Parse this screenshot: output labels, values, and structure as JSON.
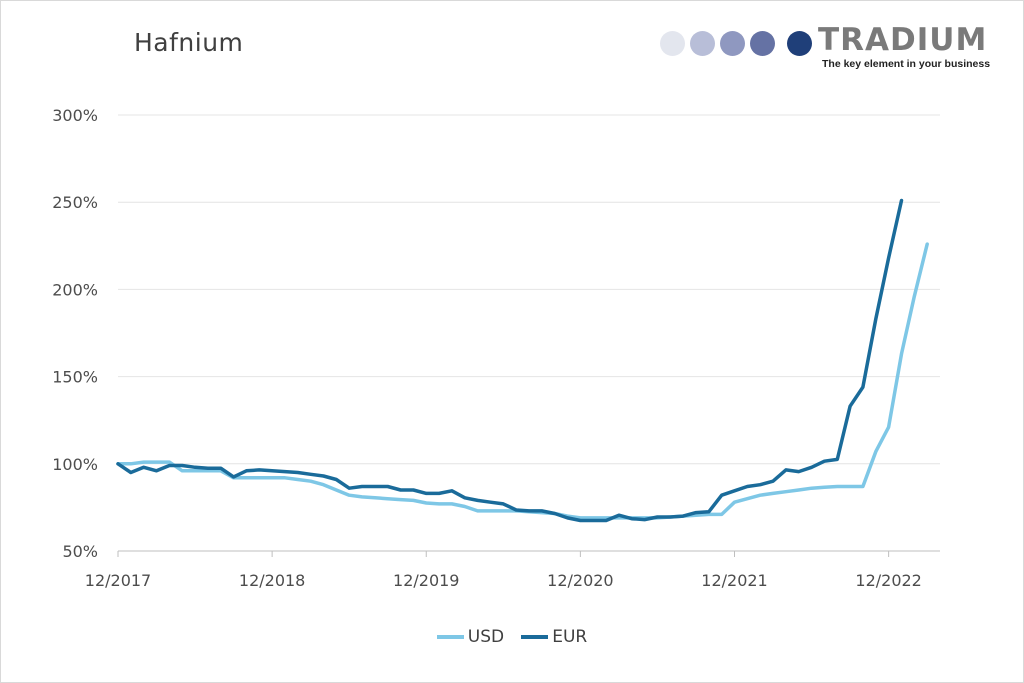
{
  "title": "Hafnium",
  "logo": {
    "brand": "TRADIUM",
    "tagline": "The key element in your business",
    "dot_colors": [
      "#e3e6ee",
      "#b8bed8",
      "#8f98c0",
      "#6572a4",
      "#1f3f79"
    ]
  },
  "chart_data": {
    "type": "line",
    "title": "Hafnium",
    "xlabel": "",
    "ylabel": "",
    "ylim": [
      50,
      300
    ],
    "y_ticks": [
      "50%",
      "100%",
      "150%",
      "200%",
      "250%",
      "300%"
    ],
    "y_tick_values": [
      50,
      100,
      150,
      200,
      250,
      300
    ],
    "x_ticks": [
      "12/2017",
      "12/2018",
      "12/2019",
      "12/2020",
      "12/2021",
      "12/2022"
    ],
    "x_unit": "months since 12/2017",
    "grid": "horizontal",
    "legend_position": "bottom-center",
    "series": [
      {
        "name": "USD",
        "color": "#7ec7e6",
        "points": [
          [
            0,
            100
          ],
          [
            1,
            100
          ],
          [
            2,
            101
          ],
          [
            3,
            101
          ],
          [
            4,
            101
          ],
          [
            5,
            96
          ],
          [
            6,
            96
          ],
          [
            7,
            96
          ],
          [
            8,
            96
          ],
          [
            9,
            92
          ],
          [
            10,
            92
          ],
          [
            11,
            92
          ],
          [
            12,
            92
          ],
          [
            13,
            92
          ],
          [
            14,
            91
          ],
          [
            15,
            90
          ],
          [
            16,
            88
          ],
          [
            17,
            85
          ],
          [
            18,
            82
          ],
          [
            19,
            81
          ],
          [
            20,
            80.5
          ],
          [
            21,
            80
          ],
          [
            22,
            79.5
          ],
          [
            23,
            79
          ],
          [
            24,
            77.5
          ],
          [
            25,
            77
          ],
          [
            26,
            77
          ],
          [
            27,
            75.5
          ],
          [
            28,
            73
          ],
          [
            29,
            73
          ],
          [
            30,
            73
          ],
          [
            31,
            73
          ],
          [
            32,
            72.5
          ],
          [
            33,
            72
          ],
          [
            34,
            71.5
          ],
          [
            35,
            70
          ],
          [
            36,
            69
          ],
          [
            37,
            69
          ],
          [
            38,
            69
          ],
          [
            39,
            69
          ],
          [
            40,
            69
          ],
          [
            41,
            69
          ],
          [
            42,
            69
          ],
          [
            43,
            69.5
          ],
          [
            44,
            70
          ],
          [
            45,
            70.5
          ],
          [
            46,
            71
          ],
          [
            47,
            71
          ],
          [
            48,
            78
          ],
          [
            49,
            80
          ],
          [
            50,
            82
          ],
          [
            51,
            83
          ],
          [
            52,
            84
          ],
          [
            53,
            85
          ],
          [
            54,
            86
          ],
          [
            55,
            86.5
          ],
          [
            56,
            87
          ],
          [
            57,
            87
          ],
          [
            58,
            87
          ],
          [
            59,
            107
          ],
          [
            60,
            121
          ],
          [
            61,
            163
          ],
          [
            62,
            196
          ],
          [
            63,
            226
          ]
        ]
      },
      {
        "name": "EUR",
        "color": "#1a6b9a",
        "points": [
          [
            0,
            100
          ],
          [
            1,
            95
          ],
          [
            2,
            98
          ],
          [
            3,
            96
          ],
          [
            4,
            99
          ],
          [
            5,
            99
          ],
          [
            6,
            98
          ],
          [
            7,
            97.5
          ],
          [
            8,
            97.5
          ],
          [
            9,
            92.5
          ],
          [
            10,
            96
          ],
          [
            11,
            96.5
          ],
          [
            12,
            96
          ],
          [
            13,
            95.5
          ],
          [
            14,
            95
          ],
          [
            15,
            94
          ],
          [
            16,
            93
          ],
          [
            17,
            91
          ],
          [
            18,
            86
          ],
          [
            19,
            87
          ],
          [
            20,
            87
          ],
          [
            21,
            87
          ],
          [
            22,
            85
          ],
          [
            23,
            85
          ],
          [
            24,
            83
          ],
          [
            25,
            83
          ],
          [
            26,
            84.5
          ],
          [
            27,
            80.5
          ],
          [
            28,
            79
          ],
          [
            29,
            78
          ],
          [
            30,
            77
          ],
          [
            31,
            73.5
          ],
          [
            32,
            73
          ],
          [
            33,
            73
          ],
          [
            34,
            71.5
          ],
          [
            35,
            69
          ],
          [
            36,
            67.5
          ],
          [
            37,
            67.5
          ],
          [
            38,
            67.5
          ],
          [
            39,
            70.5
          ],
          [
            40,
            68.5
          ],
          [
            41,
            68
          ],
          [
            42,
            69.5
          ],
          [
            43,
            69.5
          ],
          [
            44,
            70
          ],
          [
            45,
            72
          ],
          [
            46,
            72.5
          ],
          [
            47,
            82
          ],
          [
            48,
            84.5
          ],
          [
            49,
            87
          ],
          [
            50,
            88
          ],
          [
            51,
            90
          ],
          [
            52,
            96.5
          ],
          [
            53,
            95.5
          ],
          [
            54,
            98
          ],
          [
            55,
            101.5
          ],
          [
            56,
            102.5
          ],
          [
            57,
            133
          ],
          [
            58,
            144
          ],
          [
            59,
            183
          ],
          [
            60,
            218
          ],
          [
            61,
            251
          ]
        ]
      }
    ]
  }
}
